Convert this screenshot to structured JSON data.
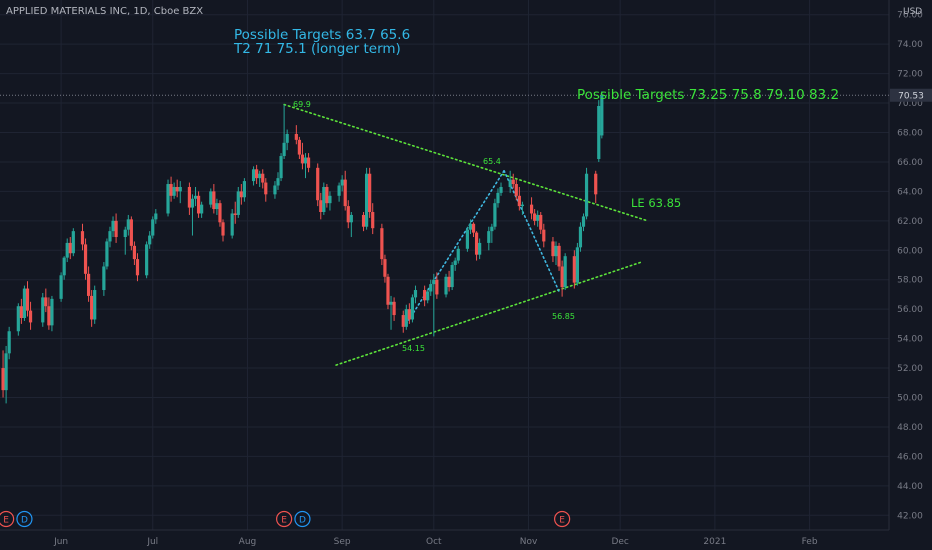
{
  "header": {
    "symbol_title": "APPLIED MATERIALS INC, 1D, Cboe BZX",
    "currency": "USD"
  },
  "colors": {
    "background": "#131722",
    "grid": "#1f2433",
    "up": "#26a69a",
    "down": "#ef5350",
    "trend": "#5ce33a",
    "inner_trend": "#3fb8e0",
    "annotation_green": "#3be33a",
    "annotation_blue": "#33b8e6",
    "axis_text": "#787b86",
    "last_price_tag": "#2d3241",
    "earnings_marker": "#ef5350",
    "dividend_marker": "#2196f3"
  },
  "annotations": {
    "blue_line1": "Possible Targets   63.7    65.6",
    "blue_line2": "T2   71  75.1 (longer term)",
    "green_targets": "Possible Targets  73.25   75.8   79.10    83.2",
    "entry": "LE 63.85",
    "label_high": "69.9",
    "label_peak": "65.4",
    "label_low": "54.15",
    "label_low2": "56.85"
  },
  "events": {
    "earnings_label": "E",
    "dividend_label": "D",
    "markers": [
      {
        "type": "earnings",
        "date": "2020-05-14"
      },
      {
        "type": "dividend",
        "date": "2020-05-20"
      },
      {
        "type": "earnings",
        "date": "2020-08-13"
      },
      {
        "type": "dividend",
        "date": "2020-08-19"
      },
      {
        "type": "earnings",
        "date": "2020-11-12"
      }
    ]
  },
  "chart_data": {
    "type": "candlestick",
    "title": "APPLIED MATERIALS INC, 1D, Cboe BZX",
    "y_axis": {
      "range": [
        41,
        77
      ],
      "ticks": [
        "42.00",
        "44.00",
        "46.00",
        "48.00",
        "50.00",
        "52.00",
        "54.00",
        "56.00",
        "58.00",
        "60.00",
        "62.00",
        "64.00",
        "66.00",
        "68.00",
        "70.00",
        "72.00",
        "74.00",
        "76.00"
      ],
      "position": "right"
    },
    "x_axis": {
      "range": [
        "2020-05-12",
        "2021-02-27"
      ],
      "ticks": [
        {
          "label": "Jun",
          "date": "2020-06-01"
        },
        {
          "label": "Jul",
          "date": "2020-07-01"
        },
        {
          "label": "Aug",
          "date": "2020-08-01"
        },
        {
          "label": "Sep",
          "date": "2020-09-01"
        },
        {
          "label": "Oct",
          "date": "2020-10-01"
        },
        {
          "label": "Nov",
          "date": "2020-11-01"
        },
        {
          "label": "Dec",
          "date": "2020-12-01"
        },
        {
          "label": "2021",
          "date": "2021-01-01"
        },
        {
          "label": "Feb",
          "date": "2021-02-01"
        }
      ]
    },
    "last_price": {
      "value": 70.53,
      "label": "70.53"
    },
    "grid": true,
    "candles": [
      [
        "2020-05-13",
        52.0,
        53.2,
        50.0,
        50.5
      ],
      [
        "2020-05-14",
        50.5,
        53.5,
        49.6,
        53.0
      ],
      [
        "2020-05-15",
        53.0,
        54.8,
        52.6,
        54.5
      ],
      [
        "2020-05-18",
        54.5,
        56.4,
        54.2,
        56.2
      ],
      [
        "2020-05-19",
        56.2,
        56.7,
        55.0,
        55.4
      ],
      [
        "2020-05-20",
        55.4,
        57.6,
        55.2,
        57.4
      ],
      [
        "2020-05-21",
        57.4,
        57.9,
        55.5,
        55.9
      ],
      [
        "2020-05-22",
        55.9,
        56.5,
        54.6,
        55.1
      ],
      [
        "2020-05-26",
        55.1,
        57.1,
        54.8,
        56.8
      ],
      [
        "2020-05-27",
        56.8,
        57.4,
        55.8,
        56.2
      ],
      [
        "2020-05-28",
        56.2,
        56.8,
        54.6,
        54.9
      ],
      [
        "2020-05-29",
        54.9,
        56.9,
        54.5,
        56.7
      ],
      [
        "2020-06-01",
        56.7,
        58.5,
        56.5,
        58.3
      ],
      [
        "2020-06-02",
        58.3,
        59.6,
        58.0,
        59.5
      ],
      [
        "2020-06-03",
        59.5,
        60.8,
        59.2,
        60.5
      ],
      [
        "2020-06-04",
        60.5,
        60.9,
        59.4,
        59.8
      ],
      [
        "2020-06-05",
        59.8,
        61.5,
        59.6,
        61.3
      ],
      [
        "2020-06-08",
        61.3,
        61.8,
        60.0,
        60.4
      ],
      [
        "2020-06-09",
        60.4,
        60.8,
        58.0,
        58.4
      ],
      [
        "2020-06-10",
        58.4,
        58.9,
        56.5,
        56.9
      ],
      [
        "2020-06-11",
        56.9,
        57.3,
        54.8,
        55.3
      ],
      [
        "2020-06-12",
        55.3,
        57.6,
        55.0,
        57.3
      ],
      [
        "2020-06-15",
        57.3,
        59.2,
        56.9,
        58.9
      ],
      [
        "2020-06-16",
        58.9,
        60.8,
        58.7,
        60.6
      ],
      [
        "2020-06-17",
        60.6,
        61.6,
        60.2,
        61.3
      ],
      [
        "2020-06-18",
        61.3,
        62.3,
        60.9,
        62.0
      ],
      [
        "2020-06-19",
        62.0,
        62.5,
        60.5,
        60.9
      ],
      [
        "2020-06-22",
        60.9,
        61.6,
        59.7,
        61.4
      ],
      [
        "2020-06-23",
        61.4,
        62.4,
        61.0,
        62.1
      ],
      [
        "2020-06-24",
        62.1,
        62.3,
        60.0,
        60.3
      ],
      [
        "2020-06-25",
        60.3,
        60.6,
        59.0,
        59.4
      ],
      [
        "2020-06-26",
        59.4,
        59.8,
        57.9,
        58.3
      ],
      [
        "2020-06-29",
        58.3,
        60.6,
        58.1,
        60.4
      ],
      [
        "2020-06-30",
        60.4,
        61.3,
        60.1,
        61.0
      ],
      [
        "2020-07-01",
        61.0,
        62.3,
        60.8,
        62.1
      ],
      [
        "2020-07-02",
        62.1,
        62.8,
        61.8,
        62.5
      ],
      [
        "2020-07-06",
        62.5,
        64.8,
        62.3,
        64.5
      ],
      [
        "2020-07-07",
        64.5,
        65.0,
        63.3,
        63.7
      ],
      [
        "2020-07-08",
        63.7,
        64.6,
        63.5,
        64.3
      ],
      [
        "2020-07-09",
        64.3,
        64.8,
        63.6,
        64.0
      ],
      [
        "2020-07-10",
        64.0,
        64.7,
        63.2,
        64.3
      ],
      [
        "2020-07-13",
        64.3,
        64.6,
        62.4,
        62.9
      ],
      [
        "2020-07-14",
        62.9,
        63.8,
        61.0,
        63.5
      ],
      [
        "2020-07-15",
        63.5,
        64.3,
        63.0,
        63.7
      ],
      [
        "2020-07-16",
        63.7,
        64.0,
        62.2,
        62.5
      ],
      [
        "2020-07-17",
        62.5,
        63.3,
        62.2,
        63.1
      ],
      [
        "2020-07-20",
        63.1,
        64.2,
        62.9,
        64.0
      ],
      [
        "2020-07-21",
        64.0,
        64.5,
        62.5,
        62.8
      ],
      [
        "2020-07-22",
        62.8,
        63.5,
        62.4,
        63.2
      ],
      [
        "2020-07-23",
        63.2,
        63.4,
        61.6,
        61.9
      ],
      [
        "2020-07-24",
        61.9,
        62.1,
        60.6,
        61.0
      ],
      [
        "2020-07-27",
        61.0,
        62.8,
        60.8,
        62.5
      ],
      [
        "2020-07-28",
        62.5,
        63.3,
        61.8,
        62.4
      ],
      [
        "2020-07-29",
        62.4,
        64.3,
        62.2,
        64.0
      ],
      [
        "2020-07-30",
        64.0,
        64.5,
        63.1,
        63.6
      ],
      [
        "2020-07-31",
        63.6,
        64.9,
        63.3,
        64.7
      ],
      [
        "2020-08-03",
        64.7,
        65.7,
        64.4,
        65.5
      ],
      [
        "2020-08-04",
        65.5,
        65.8,
        64.5,
        64.9
      ],
      [
        "2020-08-05",
        64.9,
        65.4,
        64.3,
        65.2
      ],
      [
        "2020-08-06",
        65.2,
        65.5,
        64.2,
        64.6
      ],
      [
        "2020-08-07",
        64.6,
        64.9,
        63.3,
        63.8
      ],
      [
        "2020-08-10",
        63.8,
        64.7,
        63.5,
        64.4
      ],
      [
        "2020-08-11",
        64.4,
        65.3,
        64.1,
        64.9
      ],
      [
        "2020-08-12",
        64.9,
        66.6,
        64.7,
        66.4
      ],
      [
        "2020-08-13",
        66.4,
        69.9,
        66.2,
        67.3
      ],
      [
        "2020-08-14",
        67.3,
        68.2,
        66.8,
        67.9
      ],
      [
        "2020-08-17",
        67.9,
        68.5,
        67.2,
        67.5
      ],
      [
        "2020-08-18",
        67.5,
        67.7,
        66.2,
        66.5
      ],
      [
        "2020-08-19",
        66.5,
        67.3,
        65.5,
        65.9
      ],
      [
        "2020-08-20",
        65.9,
        66.6,
        64.9,
        66.3
      ],
      [
        "2020-08-21",
        66.3,
        66.6,
        65.3,
        65.6
      ],
      [
        "2020-08-24",
        65.6,
        65.9,
        63.0,
        63.4
      ],
      [
        "2020-08-25",
        63.4,
        63.9,
        62.1,
        62.6
      ],
      [
        "2020-08-26",
        62.6,
        64.6,
        62.4,
        64.3
      ],
      [
        "2020-08-27",
        64.3,
        64.5,
        62.9,
        63.2
      ],
      [
        "2020-08-28",
        63.2,
        64.0,
        62.7,
        63.7
      ],
      [
        "2020-08-31",
        63.7,
        64.6,
        63.3,
        64.4
      ],
      [
        "2020-09-01",
        64.4,
        65.1,
        64.0,
        64.8
      ],
      [
        "2020-09-02",
        64.8,
        65.4,
        62.7,
        63.0
      ],
      [
        "2020-09-03",
        63.0,
        63.4,
        61.5,
        61.9
      ],
      [
        "2020-09-04",
        61.9,
        62.6,
        60.9,
        62.4
      ],
      [
        "2020-09-08",
        62.4,
        62.6,
        61.3,
        61.6
      ],
      [
        "2020-09-09",
        61.6,
        65.6,
        61.4,
        65.2
      ],
      [
        "2020-09-10",
        65.2,
        65.6,
        62.2,
        62.6
      ],
      [
        "2020-09-11",
        62.6,
        63.2,
        61.1,
        61.5
      ],
      [
        "2020-09-14",
        61.5,
        61.8,
        59.0,
        59.4
      ],
      [
        "2020-09-15",
        59.4,
        59.7,
        57.8,
        58.2
      ],
      [
        "2020-09-16",
        58.2,
        58.4,
        56.0,
        56.3
      ],
      [
        "2020-09-17",
        56.3,
        56.9,
        54.6,
        56.5
      ],
      [
        "2020-09-18",
        56.5,
        56.8,
        55.2,
        55.6
      ],
      [
        "2020-09-21",
        55.6,
        55.9,
        54.4,
        54.8
      ],
      [
        "2020-09-22",
        54.8,
        56.3,
        54.6,
        56.0
      ],
      [
        "2020-09-23",
        56.0,
        56.4,
        55.0,
        55.3
      ],
      [
        "2020-09-24",
        55.3,
        57.0,
        55.1,
        56.8
      ],
      [
        "2020-09-25",
        56.8,
        57.6,
        56.4,
        57.3
      ],
      [
        "2020-09-28",
        57.3,
        57.6,
        56.2,
        56.6
      ],
      [
        "2020-09-29",
        56.6,
        57.4,
        56.4,
        57.2
      ],
      [
        "2020-09-30",
        57.2,
        58.0,
        56.9,
        57.7
      ],
      [
        "2020-10-01",
        57.7,
        58.4,
        54.15,
        58.0
      ],
      [
        "2020-10-02",
        58.0,
        58.5,
        56.7,
        57.0
      ],
      [
        "2020-10-05",
        57.0,
        58.4,
        56.8,
        58.2
      ],
      [
        "2020-10-06",
        58.2,
        58.6,
        57.2,
        57.5
      ],
      [
        "2020-10-07",
        57.5,
        59.2,
        57.3,
        59.0
      ],
      [
        "2020-10-08",
        59.0,
        59.5,
        58.6,
        59.3
      ],
      [
        "2020-10-09",
        59.3,
        60.3,
        59.1,
        60.1
      ],
      [
        "2020-10-12",
        60.1,
        61.6,
        59.9,
        61.4
      ],
      [
        "2020-10-13",
        61.4,
        62.1,
        61.1,
        61.8
      ],
      [
        "2020-10-14",
        61.8,
        61.9,
        60.9,
        61.2
      ],
      [
        "2020-10-15",
        61.2,
        61.3,
        59.3,
        59.7
      ],
      [
        "2020-10-16",
        59.7,
        60.8,
        59.4,
        60.5
      ],
      [
        "2020-10-19",
        60.5,
        61.6,
        60.0,
        61.3
      ],
      [
        "2020-10-20",
        61.3,
        61.8,
        60.5,
        61.6
      ],
      [
        "2020-10-21",
        61.6,
        63.5,
        61.4,
        63.2
      ],
      [
        "2020-10-22",
        63.2,
        64.2,
        62.9,
        63.9
      ],
      [
        "2020-10-23",
        63.9,
        64.6,
        63.7,
        64.3
      ],
      [
        "2020-10-26",
        64.3,
        65.4,
        63.9,
        64.8
      ],
      [
        "2020-10-27",
        64.8,
        65.2,
        64.2,
        64.5
      ],
      [
        "2020-10-28",
        64.5,
        64.8,
        63.4,
        63.7
      ],
      [
        "2020-10-29",
        63.7,
        64.3,
        62.7,
        63.0
      ],
      [
        "2020-10-30",
        63.0,
        63.3,
        62.4,
        63.1
      ],
      [
        "2020-11-02",
        63.1,
        63.6,
        62.1,
        62.5
      ],
      [
        "2020-11-03",
        62.5,
        62.8,
        61.7,
        62.0
      ],
      [
        "2020-11-04",
        62.0,
        62.7,
        61.6,
        62.4
      ],
      [
        "2020-11-05",
        62.4,
        62.6,
        61.1,
        61.4
      ],
      [
        "2020-11-06",
        61.4,
        61.8,
        60.2,
        60.6
      ],
      [
        "2020-11-09",
        60.6,
        60.9,
        59.2,
        59.6
      ],
      [
        "2020-11-10",
        59.6,
        60.6,
        59.0,
        60.3
      ],
      [
        "2020-11-11",
        60.3,
        60.5,
        58.6,
        58.9
      ],
      [
        "2020-11-12",
        58.9,
        59.3,
        56.85,
        57.5
      ],
      [
        "2020-11-13",
        57.5,
        59.8,
        57.3,
        59.6
      ],
      [
        "2020-11-16",
        59.6,
        60.0,
        57.4,
        57.8
      ],
      [
        "2020-11-17",
        57.8,
        60.5,
        57.6,
        60.2
      ],
      [
        "2020-11-18",
        60.2,
        61.9,
        59.9,
        61.6
      ],
      [
        "2020-11-19",
        61.6,
        62.5,
        61.3,
        62.3
      ],
      [
        "2020-11-20",
        62.3,
        65.6,
        62.1,
        65.2
      ],
      [
        "2020-11-23",
        65.2,
        65.4,
        63.2,
        63.8
      ],
      [
        "2020-11-24",
        66.2,
        70.2,
        66.0,
        69.8
      ],
      [
        "2020-11-25",
        67.8,
        70.8,
        67.6,
        70.53
      ]
    ]
  }
}
